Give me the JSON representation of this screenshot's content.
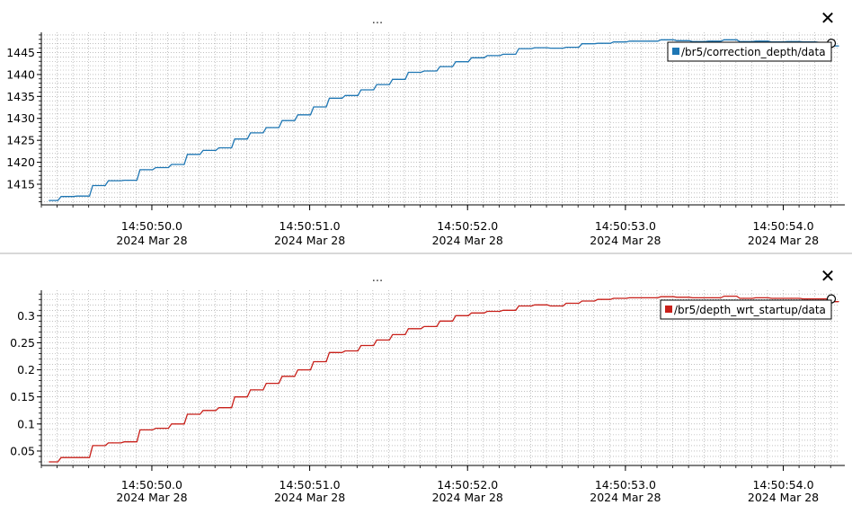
{
  "close_glyph": "✕",
  "chart_data": [
    {
      "type": "line",
      "title": "...",
      "legend_position": "top-right",
      "grid": true,
      "series": [
        {
          "name": "/br5/correction_depth/data",
          "color": "#1f77b4",
          "x": [
            49.35,
            49.45,
            49.55,
            49.65,
            49.75,
            49.85,
            49.95,
            50.05,
            50.15,
            50.25,
            50.35,
            50.45,
            50.55,
            50.65,
            50.75,
            50.85,
            50.95,
            51.05,
            51.15,
            51.25,
            51.35,
            51.45,
            51.55,
            51.65,
            51.75,
            51.85,
            51.95,
            52.05,
            52.15,
            52.25,
            52.35,
            52.45,
            52.55,
            52.65,
            52.75,
            52.85,
            52.95,
            53.05,
            53.15,
            53.25,
            53.35,
            53.45,
            53.55,
            53.65,
            53.75,
            53.85,
            53.95,
            54.05,
            54.15,
            54.25,
            54.35
          ],
          "values": [
            1411.3,
            1412.2,
            1412.3,
            1414.7,
            1415.8,
            1415.9,
            1418.3,
            1418.8,
            1419.5,
            1421.8,
            1422.7,
            1423.3,
            1425.3,
            1426.7,
            1427.9,
            1429.5,
            1430.8,
            1432.6,
            1434.6,
            1435.2,
            1436.5,
            1437.7,
            1438.9,
            1440.5,
            1440.8,
            1441.8,
            1442.9,
            1443.8,
            1444.3,
            1444.6,
            1445.9,
            1446.1,
            1446.0,
            1446.2,
            1447.0,
            1447.1,
            1447.4,
            1447.6,
            1447.6,
            1447.9,
            1447.7,
            1447.5,
            1447.6,
            1447.9,
            1447.5,
            1447.6,
            1447.4,
            1447.5,
            1447.4,
            1447.3,
            1446.5
          ],
          "last_marker": true
        }
      ],
      "ylim": [
        1410.5,
        1449.6
      ],
      "yticks": [
        1415,
        1420,
        1425,
        1430,
        1435,
        1440,
        1445
      ],
      "yticklabels": [
        "1415",
        "1420",
        "1425",
        "1430",
        "1435",
        "1440",
        "1445"
      ],
      "xlim": [
        49.3,
        54.35
      ],
      "xticks": [
        50.0,
        51.0,
        52.0,
        53.0,
        54.0
      ],
      "xticklabels": [
        [
          "14:50:50.0",
          "2024 Mar 28"
        ],
        [
          "14:50:51.0",
          "2024 Mar 28"
        ],
        [
          "14:50:52.0",
          "2024 Mar 28"
        ],
        [
          "14:50:53.0",
          "2024 Mar 28"
        ],
        [
          "14:50:54.0",
          "2024 Mar 28"
        ]
      ]
    },
    {
      "type": "line",
      "title": "...",
      "legend_position": "top-right",
      "grid": true,
      "series": [
        {
          "name": "/br5/depth_wrt_startup/data",
          "color": "#c8201a",
          "x": [
            49.35,
            49.45,
            49.55,
            49.65,
            49.75,
            49.85,
            49.95,
            50.05,
            50.15,
            50.25,
            50.35,
            50.45,
            50.55,
            50.65,
            50.75,
            50.85,
            50.95,
            51.05,
            51.15,
            51.25,
            51.35,
            51.45,
            51.55,
            51.65,
            51.75,
            51.85,
            51.95,
            52.05,
            52.15,
            52.25,
            52.35,
            52.45,
            52.55,
            52.65,
            52.75,
            52.85,
            52.95,
            53.05,
            53.15,
            53.25,
            53.35,
            53.45,
            53.55,
            53.65,
            53.75,
            53.85,
            53.95,
            54.05,
            54.15,
            54.25,
            54.35
          ],
          "values": [
            0.03,
            0.038,
            0.038,
            0.06,
            0.065,
            0.067,
            0.089,
            0.092,
            0.1,
            0.118,
            0.125,
            0.13,
            0.15,
            0.163,
            0.175,
            0.188,
            0.2,
            0.215,
            0.232,
            0.235,
            0.245,
            0.255,
            0.265,
            0.276,
            0.28,
            0.29,
            0.3,
            0.305,
            0.308,
            0.31,
            0.318,
            0.32,
            0.318,
            0.323,
            0.327,
            0.33,
            0.332,
            0.333,
            0.333,
            0.335,
            0.334,
            0.333,
            0.333,
            0.336,
            0.332,
            0.333,
            0.332,
            0.332,
            0.331,
            0.331,
            0.326
          ],
          "last_marker": true
        }
      ],
      "ylim": [
        0.025,
        0.347
      ],
      "yticks": [
        0.05,
        0.1,
        0.15,
        0.2,
        0.25,
        0.3
      ],
      "yticklabels": [
        "0.05",
        "0.1",
        "0.15",
        "0.2",
        "0.25",
        "0.3"
      ],
      "xlim": [
        49.3,
        54.35
      ],
      "xticks": [
        50.0,
        51.0,
        52.0,
        53.0,
        54.0
      ],
      "xticklabels": [
        [
          "14:50:50.0",
          "2024 Mar 28"
        ],
        [
          "14:50:51.0",
          "2024 Mar 28"
        ],
        [
          "14:50:52.0",
          "2024 Mar 28"
        ],
        [
          "14:50:53.0",
          "2024 Mar 28"
        ],
        [
          "14:50:54.0",
          "2024 Mar 28"
        ]
      ]
    }
  ]
}
